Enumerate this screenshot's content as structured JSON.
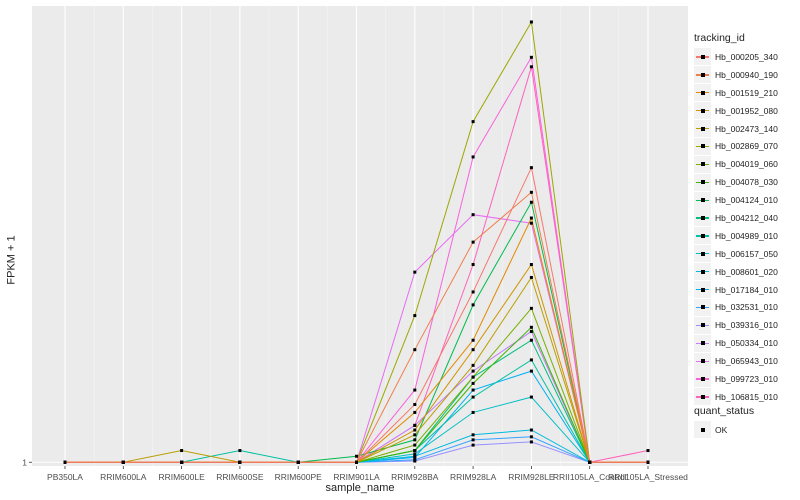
{
  "chart_data": {
    "type": "line",
    "title": "",
    "xlabel": "sample_name",
    "ylabel": "FPKM + 1",
    "y_scale": "log",
    "ylim": [
      0.97,
      41
    ],
    "y_ticks": [
      1
    ],
    "y_tick_labels": [
      "1"
    ],
    "grid": true,
    "legend_position": "right",
    "categories": [
      "PB350LA",
      "RRIM600LA",
      "RRIM600LE",
      "RRIM600SE",
      "RRIM600PE",
      "RRIM901LA",
      "RRIM928BA",
      "RRIM928LA",
      "RRIM928LE",
      "RRII105LA_Control",
      "RRII105LA_Stressed"
    ],
    "legend_title": "tracking_id",
    "shape_legend_title": "quant_status",
    "shape_legend_items": [
      "OK"
    ],
    "series": [
      {
        "name": "Hb_000205_340",
        "color": "#F8766D",
        "values": [
          1,
          1,
          1,
          1,
          1,
          1,
          1.6,
          4.0,
          11.0,
          1,
          1
        ]
      },
      {
        "name": "Hb_000940_190",
        "color": "#F07E4D",
        "values": [
          1,
          1,
          1,
          1,
          1,
          1,
          2.5,
          6.0,
          9.0,
          1,
          1
        ]
      },
      {
        "name": "Hb_001519_210",
        "color": "#E38900",
        "values": [
          1,
          1,
          1,
          1,
          1,
          1,
          1.5,
          2.7,
          7.3,
          1,
          1
        ]
      },
      {
        "name": "Hb_001952_080",
        "color": "#D19300",
        "values": [
          1,
          1,
          1,
          1,
          1,
          1,
          1.3,
          2.5,
          5.0,
          1,
          1
        ]
      },
      {
        "name": "Hb_002473_140",
        "color": "#BA9E00",
        "values": [
          1,
          1,
          1.1,
          1,
          1,
          1,
          1.25,
          2.2,
          4.5,
          1,
          1
        ]
      },
      {
        "name": "Hb_002869_070",
        "color": "#9DA700",
        "values": [
          1,
          1,
          1,
          1,
          1,
          1,
          3.3,
          16.0,
          36.0,
          1,
          1
        ]
      },
      {
        "name": "Hb_004019_060",
        "color": "#78AF00",
        "values": [
          1,
          1,
          1,
          1,
          1,
          1,
          1.15,
          2.0,
          3.5,
          1,
          1
        ]
      },
      {
        "name": "Hb_004078_030",
        "color": "#39B600",
        "values": [
          1,
          1,
          1,
          1,
          1,
          1,
          1.1,
          1.9,
          3.0,
          1,
          1
        ]
      },
      {
        "name": "Hb_004124_010",
        "color": "#00BB4E",
        "values": [
          1,
          1,
          1,
          1,
          1,
          1.05,
          1.2,
          3.6,
          8.3,
          1,
          1
        ]
      },
      {
        "name": "Hb_004212_040",
        "color": "#00BF7D",
        "values": [
          1,
          1,
          1,
          1,
          1,
          1,
          1.1,
          2.0,
          2.7,
          1,
          1
        ]
      },
      {
        "name": "Hb_004989_010",
        "color": "#00C1A3",
        "values": [
          1,
          1,
          1,
          1.1,
          1,
          1,
          1.1,
          1.7,
          2.3,
          1,
          1
        ]
      },
      {
        "name": "Hb_006157_050",
        "color": "#00BFC4",
        "values": [
          1,
          1,
          1,
          1,
          1,
          1,
          1.07,
          1.5,
          1.7,
          1,
          1
        ]
      },
      {
        "name": "Hb_008601_020",
        "color": "#00BAE0",
        "values": [
          1,
          1,
          1,
          1,
          1,
          1,
          1.05,
          1.25,
          1.3,
          1,
          1
        ]
      },
      {
        "name": "Hb_017184_010",
        "color": "#00B0F6",
        "values": [
          1,
          1,
          1,
          1,
          1,
          1,
          1.04,
          1.8,
          2.1,
          1,
          1
        ]
      },
      {
        "name": "Hb_032531_010",
        "color": "#35A2FF",
        "values": [
          1,
          1,
          1,
          1,
          1,
          1,
          1.02,
          1.2,
          1.23,
          1,
          1
        ]
      },
      {
        "name": "Hb_039316_010",
        "color": "#9590FF",
        "values": [
          1,
          1,
          1,
          1,
          1,
          1,
          1.01,
          1.15,
          1.18,
          1,
          1
        ]
      },
      {
        "name": "Hb_050334_010",
        "color": "#C77CFF",
        "values": [
          1,
          1,
          1,
          1,
          1,
          1,
          1.35,
          2.1,
          2.9,
          1,
          1
        ]
      },
      {
        "name": "Hb_065943_010",
        "color": "#E76BF3",
        "values": [
          1,
          1,
          1,
          1,
          1,
          1,
          4.7,
          7.5,
          7.0,
          1,
          1
        ]
      },
      {
        "name": "Hb_099723_010",
        "color": "#FA62DB",
        "values": [
          1,
          1,
          1,
          1,
          1,
          1,
          1.8,
          12.0,
          27.0,
          1,
          1
        ]
      },
      {
        "name": "Hb_106815_010",
        "color": "#FF62BC",
        "values": [
          1,
          1,
          1,
          1,
          1,
          1,
          1.35,
          5.0,
          25.0,
          1,
          1.1
        ]
      }
    ]
  }
}
